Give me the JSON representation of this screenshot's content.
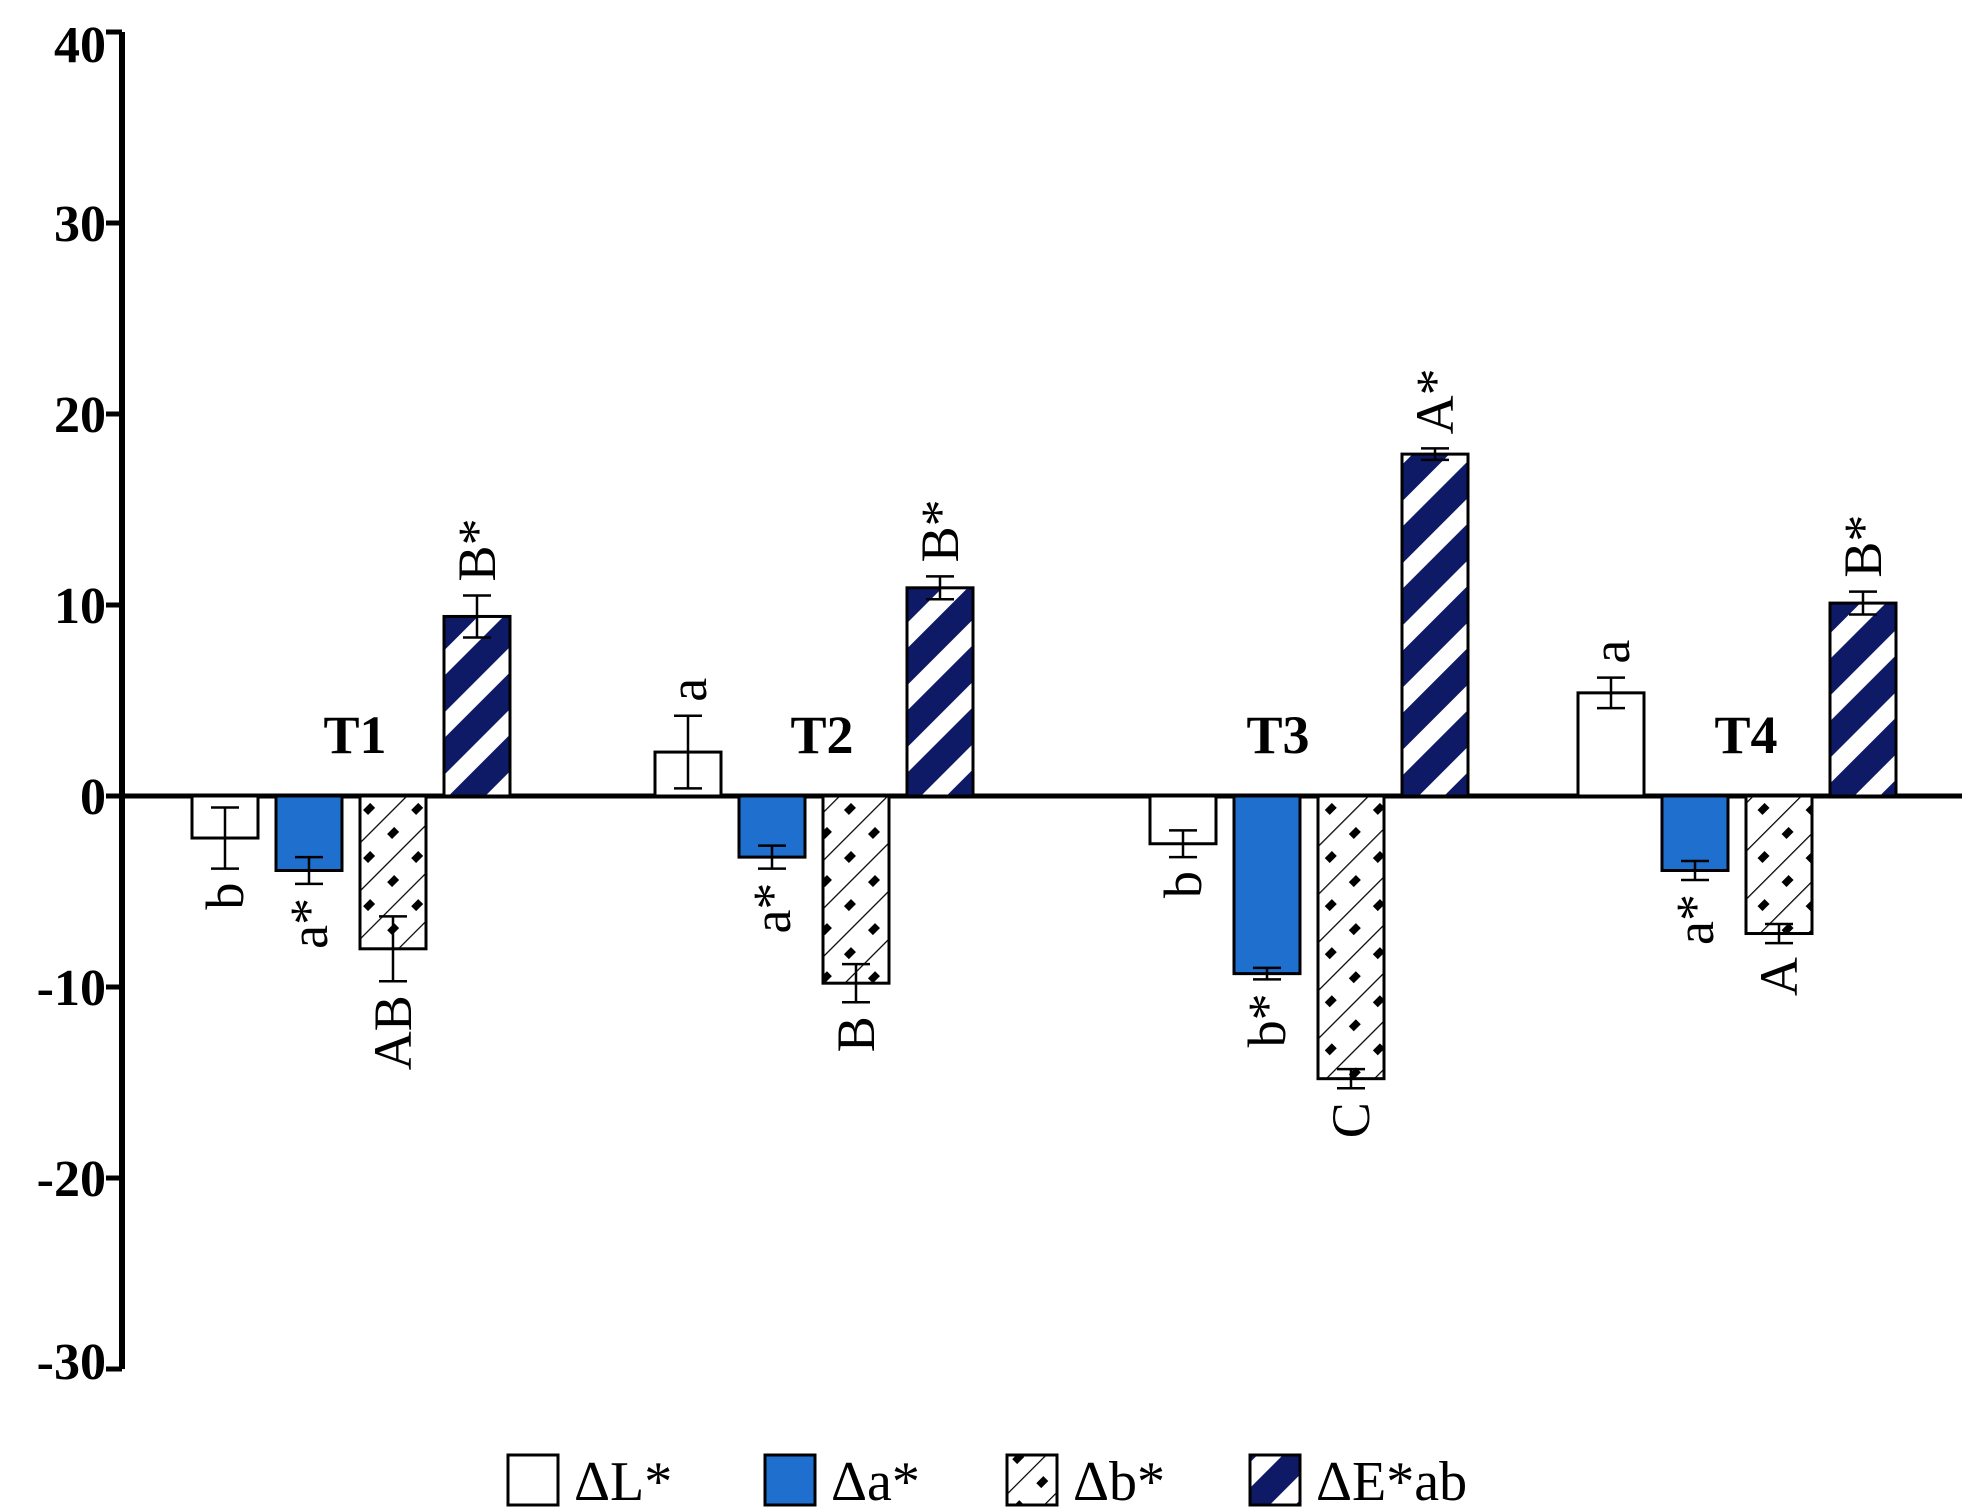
{
  "chart_data": {
    "type": "bar",
    "title": "",
    "xlabel": "",
    "ylabel": "",
    "ylim": [
      -30,
      40
    ],
    "yticks": [
      40,
      30,
      20,
      10,
      0,
      -10,
      -20,
      -30
    ],
    "grid": false,
    "legend_position": "bottom",
    "categories": [
      "T1",
      "T2",
      "T3",
      "T4"
    ],
    "series": [
      {
        "name": "ΔL*",
        "pattern": "white",
        "values": [
          -2.2,
          2.3,
          -2.5,
          5.4
        ],
        "errors": [
          1.6,
          1.9,
          0.7,
          0.8
        ],
        "labels": [
          "b",
          "a",
          "b",
          "a"
        ]
      },
      {
        "name": "Δa*",
        "pattern": "blue",
        "values": [
          -3.9,
          -3.2,
          -9.3,
          -3.9
        ],
        "errors": [
          0.7,
          0.6,
          0.3,
          0.5
        ],
        "labels": [
          "a*",
          "a*",
          "b*",
          "a*"
        ]
      },
      {
        "name": "Δb*",
        "pattern": "hatch",
        "values": [
          -8.0,
          -9.8,
          -14.8,
          -7.2
        ],
        "errors": [
          1.7,
          1.0,
          0.5,
          0.5
        ],
        "labels": [
          "AB",
          "B",
          "C",
          "A"
        ]
      },
      {
        "name": "ΔE*ab",
        "pattern": "navy-stripe",
        "values": [
          9.4,
          10.9,
          17.9,
          10.1
        ],
        "errors": [
          1.1,
          0.6,
          0.3,
          0.6
        ],
        "labels": [
          "B*",
          "B*",
          "A*",
          "B*"
        ]
      }
    ],
    "colors": {
      "blue": "#1f6fcf",
      "navy": "#0f1a66",
      "axis": "#000000"
    }
  }
}
